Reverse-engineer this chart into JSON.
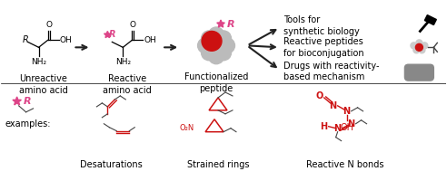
{
  "bg_color": "#ffffff",
  "arrow_color": "#222222",
  "red_color": "#cc1111",
  "pink_color": "#dd4488",
  "gray_color": "#bbbbbb",
  "dark_gray": "#444444",
  "text_labels": {
    "unreactive": "Unreactive\namino acid",
    "reactive": "Reactive\namino acid",
    "functionalized": "Functionalized\npeptide",
    "tools": "Tools for\nsynthetic biology",
    "reactive_peptides": "Reactive peptides\nfor bioconjugation",
    "drugs": "Drugs with reactivity-\nbased mechanism",
    "examples": "examples:",
    "desaturations": "Desaturations",
    "strained": "Strained rings",
    "reactive_n": "Reactive N bonds"
  },
  "fs": 6.5,
  "fs2": 7.0
}
